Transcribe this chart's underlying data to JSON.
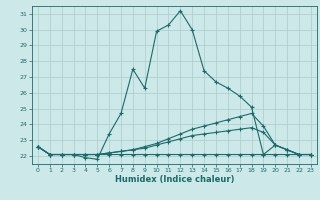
{
  "xlabel": "Humidex (Indice chaleur)",
  "xlim": [
    -0.5,
    23.5
  ],
  "ylim": [
    21.5,
    31.5
  ],
  "yticks": [
    22,
    23,
    24,
    25,
    26,
    27,
    28,
    29,
    30,
    31
  ],
  "xticks": [
    0,
    1,
    2,
    3,
    4,
    5,
    6,
    7,
    8,
    9,
    10,
    11,
    12,
    13,
    14,
    15,
    16,
    17,
    18,
    19,
    20,
    21,
    22,
    23
  ],
  "bg_color": "#cde8e8",
  "grid_color": "#aacccc",
  "line_color": "#1a6b6b",
  "curves": [
    [
      22.6,
      22.1,
      22.1,
      22.1,
      21.9,
      21.8,
      23.4,
      24.7,
      27.5,
      26.3,
      29.9,
      30.3,
      31.2,
      30.0,
      27.4,
      26.7,
      26.3,
      25.8,
      25.1,
      22.1,
      22.7,
      22.4,
      22.1,
      22.1
    ],
    [
      22.6,
      22.1,
      22.1,
      22.1,
      22.1,
      22.1,
      22.2,
      22.3,
      22.4,
      22.6,
      22.8,
      23.1,
      23.4,
      23.7,
      23.9,
      24.1,
      24.3,
      24.5,
      24.7,
      23.9,
      22.7,
      22.4,
      22.1,
      22.1
    ],
    [
      22.6,
      22.1,
      22.1,
      22.1,
      22.1,
      22.1,
      22.2,
      22.3,
      22.4,
      22.5,
      22.7,
      22.9,
      23.1,
      23.3,
      23.4,
      23.5,
      23.6,
      23.7,
      23.8,
      23.5,
      22.7,
      22.4,
      22.1,
      22.1
    ],
    [
      22.6,
      22.1,
      22.1,
      22.1,
      22.1,
      22.1,
      22.1,
      22.1,
      22.1,
      22.1,
      22.1,
      22.1,
      22.1,
      22.1,
      22.1,
      22.1,
      22.1,
      22.1,
      22.1,
      22.1,
      22.1,
      22.1,
      22.1,
      22.1
    ]
  ]
}
